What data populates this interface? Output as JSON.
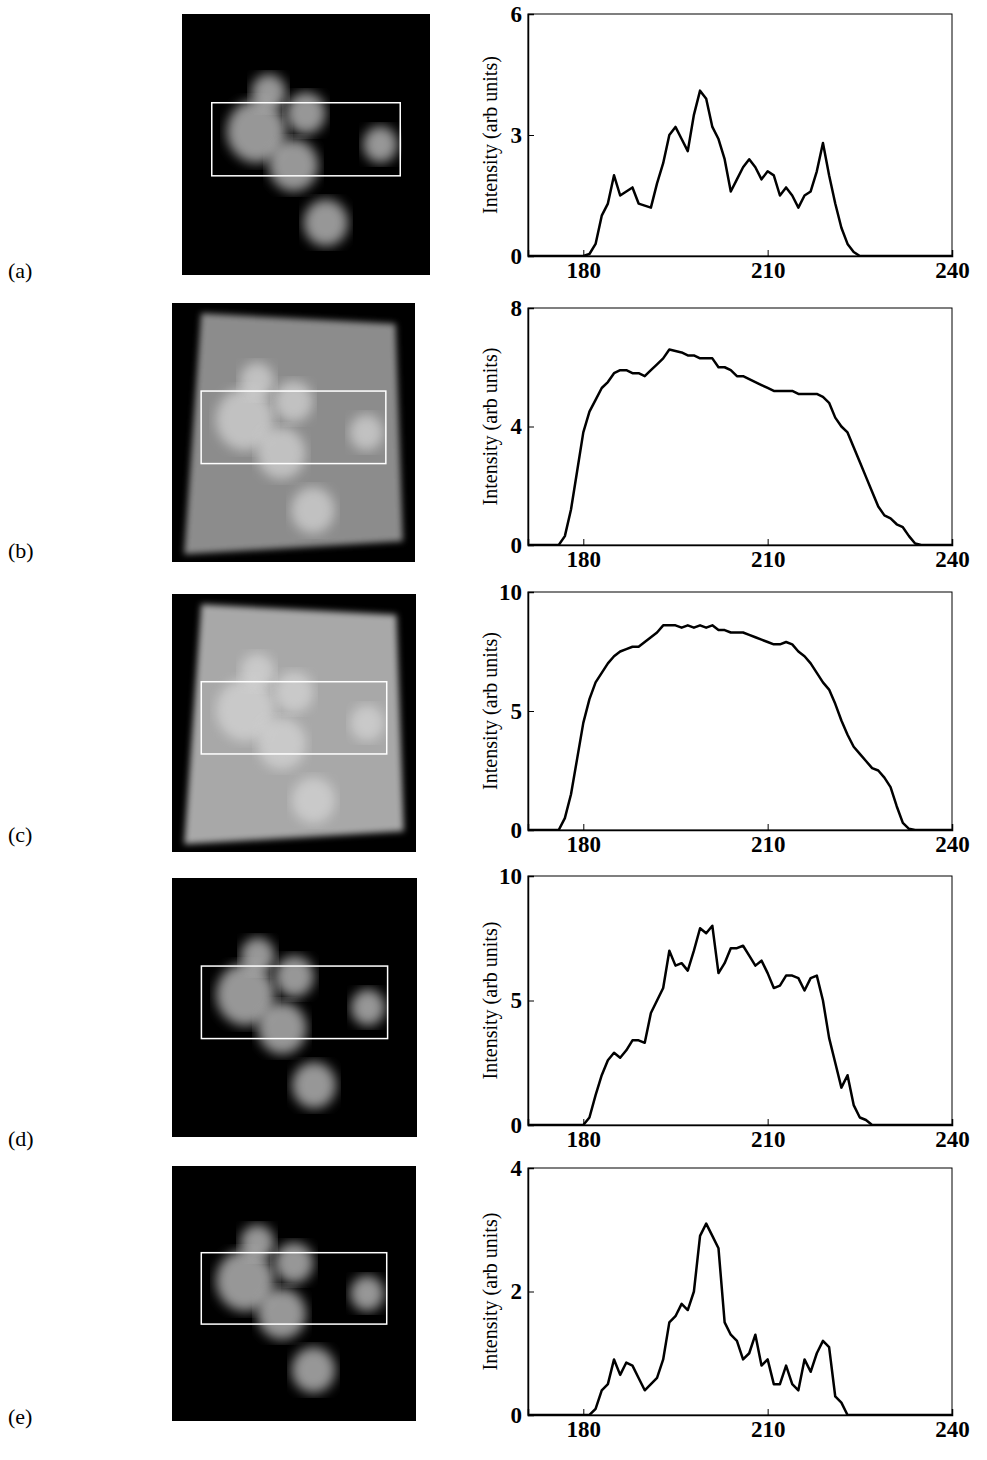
{
  "chart_data": [
    {
      "type": "line",
      "panel_label": "(a)",
      "y_label": "Intensity (arb units)",
      "color": "#000000",
      "xlim": [
        171,
        240
      ],
      "xticks": [
        180,
        210,
        240
      ],
      "ylim": [
        0,
        6
      ],
      "yticks": [
        0,
        3,
        6
      ],
      "x": [
        171,
        178,
        179,
        180,
        181,
        182,
        183,
        184,
        185,
        186,
        187,
        188,
        189,
        190,
        191,
        192,
        193,
        194,
        195,
        196,
        197,
        198,
        199,
        200,
        201,
        202,
        203,
        204,
        205,
        206,
        207,
        208,
        209,
        210,
        211,
        212,
        213,
        214,
        215,
        216,
        217,
        218,
        219,
        220,
        221,
        222,
        223,
        224,
        225,
        240
      ],
      "values": [
        0,
        0,
        0,
        0,
        0.05,
        0.3,
        1.0,
        1.3,
        2.0,
        1.5,
        1.6,
        1.7,
        1.3,
        1.25,
        1.2,
        1.8,
        2.3,
        3.0,
        3.2,
        2.9,
        2.6,
        3.5,
        4.1,
        3.9,
        3.2,
        2.9,
        2.4,
        1.6,
        1.9,
        2.2,
        2.4,
        2.2,
        1.9,
        2.1,
        2.0,
        1.5,
        1.7,
        1.5,
        1.2,
        1.5,
        1.6,
        2.1,
        2.8,
        2.0,
        1.3,
        0.7,
        0.3,
        0.1,
        0,
        0
      ]
    },
    {
      "type": "line",
      "panel_label": "(b)",
      "y_label": "Intensity (arb units)",
      "color": "#000000",
      "xlim": [
        171,
        240
      ],
      "xticks": [
        180,
        210,
        240
      ],
      "ylim": [
        0,
        8
      ],
      "yticks": [
        0,
        4,
        8
      ],
      "x": [
        171,
        176,
        177,
        178,
        179,
        180,
        181,
        182,
        183,
        184,
        185,
        186,
        187,
        188,
        189,
        190,
        191,
        192,
        193,
        194,
        195,
        196,
        197,
        198,
        199,
        200,
        201,
        202,
        203,
        204,
        205,
        206,
        207,
        208,
        209,
        210,
        211,
        212,
        213,
        214,
        215,
        216,
        217,
        218,
        219,
        220,
        221,
        222,
        223,
        224,
        225,
        226,
        227,
        228,
        229,
        230,
        231,
        232,
        233,
        234,
        235,
        240
      ],
      "values": [
        0,
        0,
        0.3,
        1.2,
        2.5,
        3.8,
        4.5,
        4.9,
        5.3,
        5.5,
        5.8,
        5.9,
        5.9,
        5.8,
        5.8,
        5.7,
        5.9,
        6.1,
        6.3,
        6.6,
        6.55,
        6.5,
        6.4,
        6.4,
        6.3,
        6.3,
        6.3,
        6.0,
        6.0,
        5.9,
        5.7,
        5.7,
        5.6,
        5.5,
        5.4,
        5.3,
        5.2,
        5.2,
        5.2,
        5.2,
        5.1,
        5.1,
        5.1,
        5.1,
        5.0,
        4.8,
        4.3,
        4.0,
        3.8,
        3.3,
        2.8,
        2.3,
        1.8,
        1.3,
        1.0,
        0.9,
        0.7,
        0.6,
        0.3,
        0.05,
        0,
        0
      ]
    },
    {
      "type": "line",
      "panel_label": "(c)",
      "y_label": "Intensity (arb units)",
      "color": "#000000",
      "xlim": [
        171,
        240
      ],
      "xticks": [
        180,
        210,
        240
      ],
      "ylim": [
        0,
        10
      ],
      "yticks": [
        0,
        5,
        10
      ],
      "x": [
        171,
        176,
        177,
        178,
        179,
        180,
        181,
        182,
        183,
        184,
        185,
        186,
        187,
        188,
        189,
        190,
        191,
        192,
        193,
        194,
        195,
        196,
        197,
        198,
        199,
        200,
        201,
        202,
        203,
        204,
        205,
        206,
        207,
        208,
        209,
        210,
        211,
        212,
        213,
        214,
        215,
        216,
        217,
        218,
        219,
        220,
        221,
        222,
        223,
        224,
        225,
        226,
        227,
        228,
        229,
        230,
        231,
        232,
        233,
        234,
        240
      ],
      "values": [
        0,
        0,
        0.5,
        1.5,
        3.0,
        4.5,
        5.5,
        6.2,
        6.6,
        7.0,
        7.3,
        7.5,
        7.6,
        7.7,
        7.7,
        7.9,
        8.1,
        8.3,
        8.6,
        8.6,
        8.6,
        8.5,
        8.6,
        8.5,
        8.6,
        8.5,
        8.6,
        8.4,
        8.4,
        8.3,
        8.3,
        8.3,
        8.2,
        8.1,
        8.0,
        7.9,
        7.8,
        7.8,
        7.9,
        7.8,
        7.5,
        7.3,
        7.0,
        6.6,
        6.2,
        5.9,
        5.3,
        4.6,
        4.0,
        3.5,
        3.2,
        2.9,
        2.6,
        2.5,
        2.2,
        1.8,
        1.0,
        0.3,
        0.05,
        0,
        0
      ]
    },
    {
      "type": "line",
      "panel_label": "(d)",
      "y_label": "Intensity (arb units)",
      "color": "#000000",
      "xlim": [
        171,
        240
      ],
      "xticks": [
        180,
        210,
        240
      ],
      "ylim": [
        0,
        10
      ],
      "yticks": [
        0,
        5,
        10
      ],
      "x": [
        171,
        180,
        181,
        182,
        183,
        184,
        185,
        186,
        187,
        188,
        189,
        190,
        191,
        192,
        193,
        194,
        195,
        196,
        197,
        198,
        199,
        200,
        201,
        202,
        203,
        204,
        205,
        206,
        207,
        208,
        209,
        210,
        211,
        212,
        213,
        214,
        215,
        216,
        217,
        218,
        219,
        220,
        221,
        222,
        223,
        224,
        225,
        226,
        227,
        240
      ],
      "values": [
        0,
        0,
        0.3,
        1.2,
        2.0,
        2.6,
        2.9,
        2.7,
        3.0,
        3.4,
        3.4,
        3.3,
        4.5,
        5.0,
        5.5,
        7.0,
        6.4,
        6.5,
        6.2,
        7.0,
        7.9,
        7.7,
        8.0,
        6.1,
        6.5,
        7.1,
        7.1,
        7.2,
        6.8,
        6.4,
        6.6,
        6.1,
        5.5,
        5.6,
        6.0,
        6.0,
        5.9,
        5.4,
        5.9,
        6.0,
        5.0,
        3.5,
        2.5,
        1.5,
        2.0,
        0.8,
        0.3,
        0.2,
        0,
        0
      ]
    },
    {
      "type": "line",
      "panel_label": "(e)",
      "y_label": "Intensity (arb units)",
      "color": "#000000",
      "xlim": [
        171,
        240
      ],
      "xticks": [
        180,
        210,
        240
      ],
      "ylim": [
        0,
        4
      ],
      "yticks": [
        0,
        2,
        4
      ],
      "x": [
        171,
        181,
        182,
        183,
        184,
        185,
        186,
        187,
        188,
        189,
        190,
        191,
        192,
        193,
        194,
        195,
        196,
        197,
        198,
        199,
        200,
        201,
        202,
        203,
        204,
        205,
        206,
        207,
        208,
        209,
        210,
        211,
        212,
        213,
        214,
        215,
        216,
        217,
        218,
        219,
        220,
        221,
        222,
        223,
        224,
        240
      ],
      "values": [
        0,
        0,
        0.1,
        0.4,
        0.5,
        0.9,
        0.65,
        0.85,
        0.8,
        0.6,
        0.4,
        0.5,
        0.6,
        0.9,
        1.5,
        1.6,
        1.8,
        1.7,
        2.0,
        2.9,
        3.1,
        2.9,
        2.7,
        1.5,
        1.3,
        1.2,
        0.9,
        1.0,
        1.3,
        0.8,
        0.9,
        0.5,
        0.5,
        0.8,
        0.5,
        0.4,
        0.9,
        0.7,
        1.0,
        1.2,
        1.1,
        0.3,
        0.2,
        0,
        0,
        0
      ]
    }
  ]
}
